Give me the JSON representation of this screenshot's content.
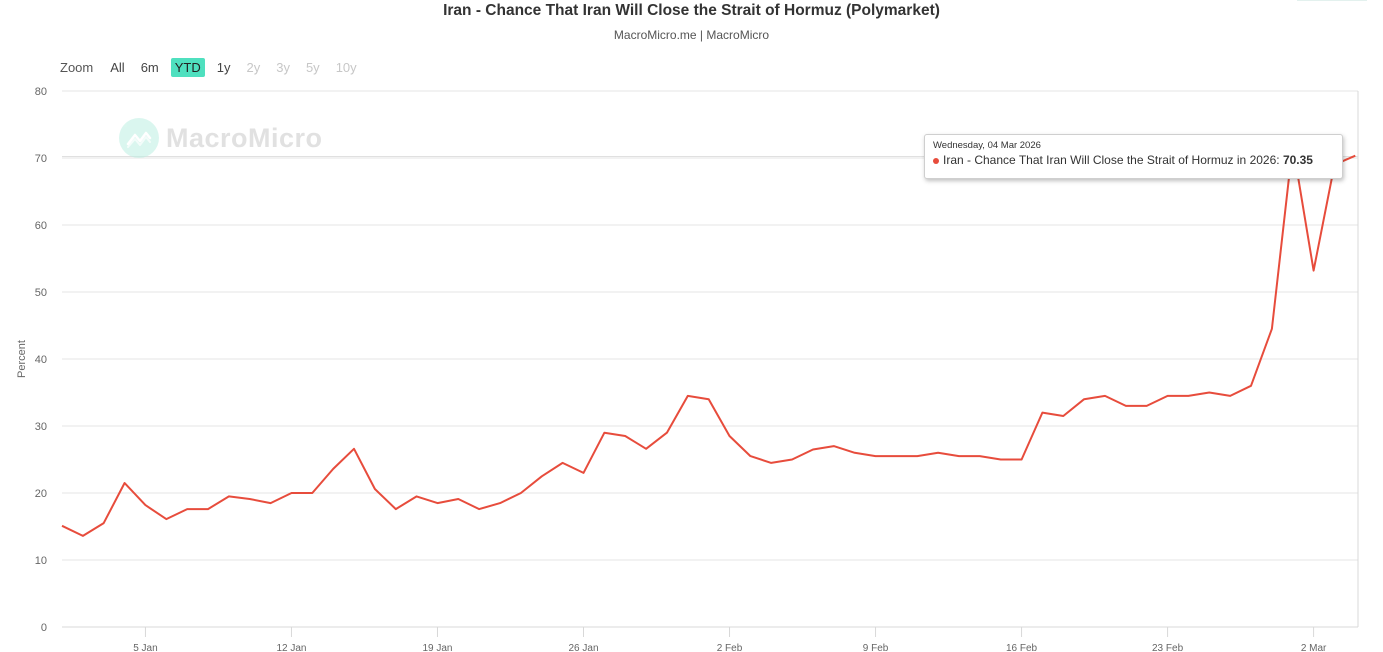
{
  "header": {
    "title": "Iran - Chance That Iran Will Close the Strait of Hormuz (Polymarket)",
    "subtitle": "MacroMicro.me | MacroMicro"
  },
  "range_selector": {
    "label": "Zoom",
    "buttons": [
      {
        "label": "All",
        "state": "enabled"
      },
      {
        "label": "6m",
        "state": "enabled"
      },
      {
        "label": "YTD",
        "state": "active"
      },
      {
        "label": "1y",
        "state": "enabled"
      },
      {
        "label": "2y",
        "state": "disabled"
      },
      {
        "label": "3y",
        "state": "disabled"
      },
      {
        "label": "5y",
        "state": "disabled"
      },
      {
        "label": "10y",
        "state": "disabled"
      }
    ],
    "active_color": "#4fe0bf"
  },
  "watermark": {
    "text": "MacroMicro",
    "icon": "chart-line-icon"
  },
  "tooltip": {
    "date": "Wednesday, 04 Mar 2026",
    "series_name": "Iran - Chance That Iran Will Close the Strait of Hormuz in 2026",
    "value": "70.35"
  },
  "colors": {
    "line": "#e74c3c",
    "grid": "#e6e6e6",
    "axis_text": "#666666"
  },
  "chart_data": {
    "type": "line",
    "title": "Iran - Chance That Iran Will Close the Strait of Hormuz (Polymarket)",
    "subtitle": "MacroMicro.me | MacroMicro",
    "xlabel": "",
    "ylabel": "Percent",
    "ylim": [
      0,
      80
    ],
    "yticks": [
      0,
      10,
      20,
      30,
      40,
      50,
      60,
      70,
      80
    ],
    "xtick_labels": [
      "5 Jan",
      "12 Jan",
      "19 Jan",
      "26 Jan",
      "2 Feb",
      "9 Feb",
      "16 Feb",
      "23 Feb",
      "2 Mar"
    ],
    "xtick_day_index": [
      4,
      11,
      18,
      25,
      32,
      39,
      46,
      53,
      60
    ],
    "grid": true,
    "legend": "none",
    "series": [
      {
        "name": "Iran - Chance That Iran Will Close the Strait of Hormuz in 2026",
        "start_date": "2026-01-01",
        "interval": "daily",
        "values": [
          15.1,
          13.6,
          15.5,
          21.5,
          18.2,
          16.1,
          17.6,
          17.6,
          19.5,
          19.1,
          18.5,
          20.0,
          20.0,
          23.6,
          26.6,
          20.6,
          17.6,
          19.5,
          18.5,
          19.1,
          17.6,
          18.5,
          20.0,
          22.5,
          24.5,
          23.0,
          29.0,
          28.5,
          26.6,
          29.0,
          34.5,
          34.0,
          28.5,
          25.5,
          24.5,
          25.0,
          26.5,
          27.0,
          26.0,
          25.5,
          25.5,
          25.5,
          26.0,
          25.5,
          25.5,
          25.0,
          25.0,
          32.0,
          31.5,
          34.0,
          34.5,
          33.0,
          33.0,
          34.5,
          34.5,
          35.0,
          34.5,
          36.0,
          44.5,
          72.0,
          53.2,
          69.0,
          70.35
        ]
      }
    ]
  }
}
